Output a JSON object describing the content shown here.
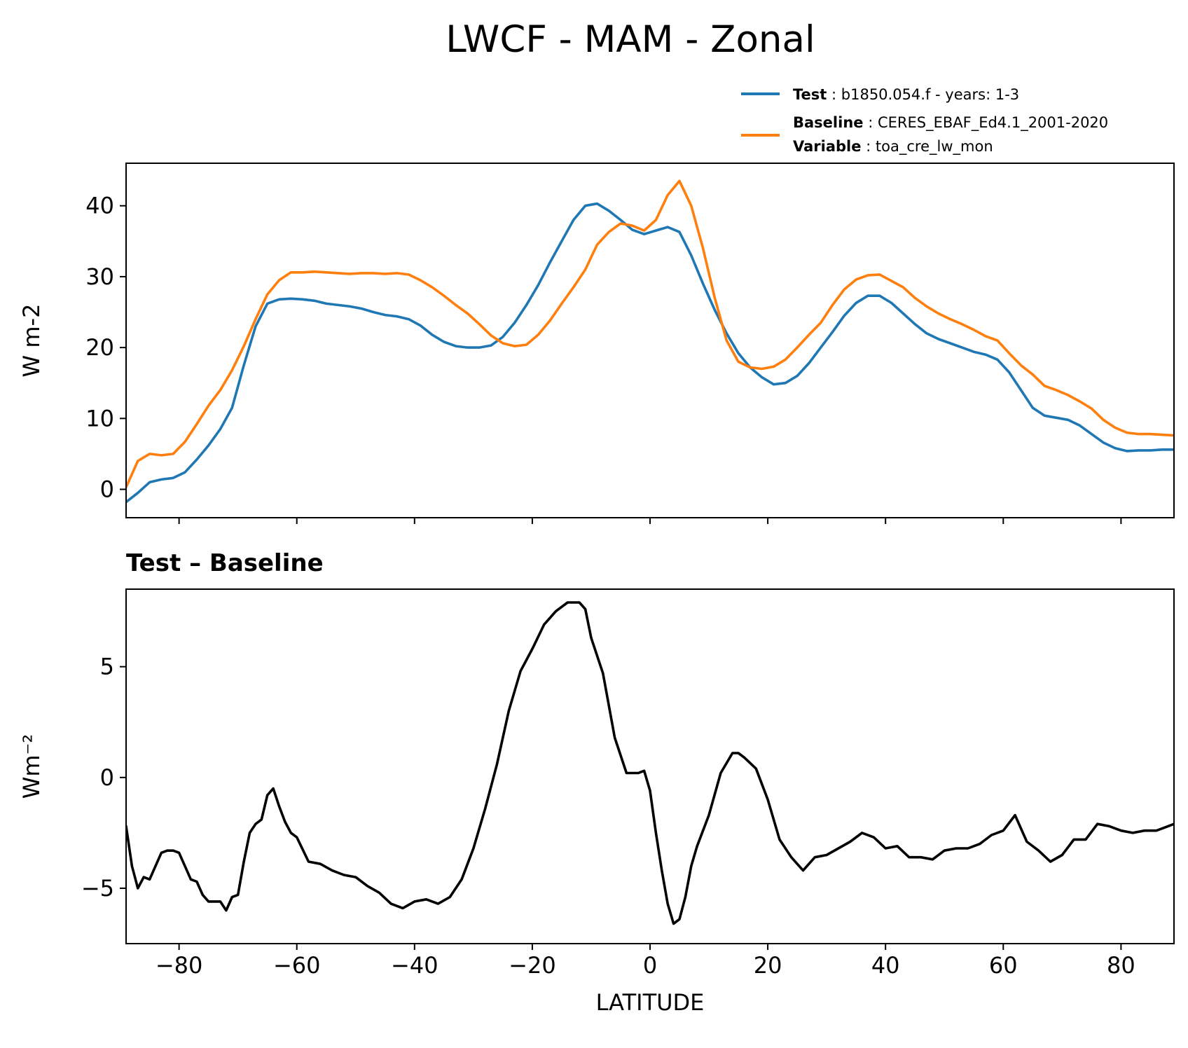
{
  "title": "LWCF - MAM - Zonal",
  "legend": {
    "test": {
      "key": "Test",
      "value": "b1850.054.f - years: 1-3"
    },
    "baseline": {
      "key": "Baseline",
      "value": "CERES_EBAF_Ed4.1_2001-2020"
    },
    "variable": {
      "key": "Variable",
      "value": "toa_cre_lw_mon"
    }
  },
  "colors": {
    "test": "#1f77b4",
    "baseline": "#ff7f0e",
    "diff": "#000000"
  },
  "chart_data": [
    {
      "type": "line",
      "xlim": [
        -89,
        89
      ],
      "ylim": [
        -4,
        46
      ],
      "ylabel": "W m-2",
      "xticks": [
        -80,
        -60,
        -40,
        -20,
        0,
        20,
        40,
        60,
        80
      ],
      "show_xticklabels": false,
      "yticks": [
        0,
        10,
        20,
        30,
        40
      ],
      "grid": false,
      "legend_position": "top-right, above axes",
      "series": [
        {
          "name": "Test",
          "x": [
            -89,
            -87,
            -85,
            -83,
            -81,
            -79,
            -77,
            -75,
            -73,
            -71,
            -69,
            -67,
            -65,
            -63,
            -61,
            -59,
            -57,
            -55,
            -53,
            -51,
            -49,
            -47,
            -45,
            -43,
            -41,
            -39,
            -37,
            -35,
            -33,
            -31,
            -29,
            -27,
            -25,
            -23,
            -21,
            -19,
            -17,
            -15,
            -13,
            -11,
            -9,
            -7,
            -5,
            -3,
            -1,
            1,
            3,
            5,
            7,
            9,
            11,
            13,
            15,
            17,
            19,
            21,
            23,
            25,
            27,
            29,
            31,
            33,
            35,
            37,
            39,
            41,
            43,
            45,
            47,
            49,
            51,
            53,
            55,
            57,
            59,
            61,
            63,
            65,
            67,
            69,
            71,
            73,
            75,
            77,
            79,
            81,
            83,
            85,
            87,
            89
          ],
          "y": [
            -1.8,
            -0.5,
            1.0,
            1.4,
            1.6,
            2.4,
            4.2,
            6.2,
            8.5,
            11.5,
            17.5,
            23.0,
            26.2,
            26.8,
            26.9,
            26.8,
            26.6,
            26.2,
            26.0,
            25.8,
            25.5,
            25.0,
            24.6,
            24.4,
            24.0,
            23.1,
            21.8,
            20.8,
            20.2,
            20.0,
            20.0,
            20.3,
            21.5,
            23.5,
            26.0,
            28.8,
            32.0,
            35.0,
            38.0,
            40.0,
            40.3,
            39.3,
            38.0,
            36.6,
            36.0,
            36.5,
            37.0,
            36.3,
            33.0,
            29.0,
            25.3,
            22.0,
            19.2,
            17.2,
            15.8,
            14.8,
            15.0,
            16.0,
            17.8,
            20.0,
            22.2,
            24.5,
            26.3,
            27.3,
            27.3,
            26.3,
            24.8,
            23.3,
            22.0,
            21.2,
            20.6,
            20.0,
            19.4,
            19.0,
            18.3,
            16.5,
            14.0,
            11.5,
            10.4,
            10.1,
            9.8,
            9.0,
            7.8,
            6.6,
            5.8,
            5.4,
            5.5,
            5.5,
            5.6,
            5.6
          ]
        },
        {
          "name": "Baseline",
          "x": [
            -89,
            -87,
            -85,
            -83,
            -81,
            -79,
            -77,
            -75,
            -73,
            -71,
            -69,
            -67,
            -65,
            -63,
            -61,
            -59,
            -57,
            -55,
            -53,
            -51,
            -49,
            -47,
            -45,
            -43,
            -41,
            -39,
            -37,
            -35,
            -33,
            -31,
            -29,
            -27,
            -25,
            -23,
            -21,
            -19,
            -17,
            -15,
            -13,
            -11,
            -9,
            -7,
            -5,
            -3,
            -1,
            1,
            3,
            5,
            7,
            9,
            11,
            13,
            15,
            17,
            19,
            21,
            23,
            25,
            27,
            29,
            31,
            33,
            35,
            37,
            39,
            41,
            43,
            45,
            47,
            49,
            51,
            53,
            55,
            57,
            59,
            61,
            63,
            65,
            67,
            69,
            71,
            73,
            75,
            77,
            79,
            81,
            83,
            85,
            87,
            89
          ],
          "y": [
            0.3,
            4.0,
            5.0,
            4.8,
            5.0,
            6.7,
            9.2,
            11.8,
            14.0,
            16.8,
            20.2,
            24.0,
            27.5,
            29.5,
            30.6,
            30.6,
            30.7,
            30.6,
            30.5,
            30.4,
            30.5,
            30.5,
            30.4,
            30.5,
            30.3,
            29.5,
            28.5,
            27.3,
            26.0,
            24.8,
            23.3,
            21.7,
            20.6,
            20.2,
            20.4,
            21.8,
            23.8,
            26.2,
            28.5,
            31.0,
            34.5,
            36.3,
            37.5,
            37.2,
            36.5,
            38.0,
            41.5,
            43.5,
            40.0,
            34.0,
            27.0,
            21.0,
            18.0,
            17.2,
            17.0,
            17.3,
            18.3,
            20.0,
            21.8,
            23.5,
            26.0,
            28.2,
            29.6,
            30.2,
            30.3,
            29.4,
            28.5,
            27.0,
            25.8,
            24.8,
            24.0,
            23.3,
            22.5,
            21.6,
            21.0,
            19.2,
            17.5,
            16.2,
            14.6,
            14.0,
            13.3,
            12.4,
            11.4,
            9.8,
            8.7,
            8.0,
            7.8,
            7.8,
            7.7,
            7.6
          ]
        }
      ]
    },
    {
      "type": "line",
      "title": "Test – Baseline",
      "xlim": [
        -89,
        89
      ],
      "ylim": [
        -7.5,
        8.5
      ],
      "xlabel": "LATITUDE",
      "ylabel": "Wm⁻²",
      "xticks": [
        -80,
        -60,
        -40,
        -20,
        0,
        20,
        40,
        60,
        80
      ],
      "xticklabels": [
        "−80",
        "−60",
        "−40",
        "−20",
        "0",
        "20",
        "40",
        "60",
        "80"
      ],
      "yticks": [
        -5,
        0,
        5
      ],
      "yticklabels": [
        "−5",
        "0",
        "5"
      ],
      "grid": false,
      "series": [
        {
          "x": [
            -89,
            -88,
            -87,
            -86,
            -85,
            -84,
            -83,
            -82,
            -81,
            -80,
            -79,
            -78,
            -77,
            -76,
            -75,
            -74,
            -73,
            -72,
            -71,
            -70,
            -69,
            -68,
            -67,
            -66,
            -65,
            -64,
            -63,
            -62,
            -61,
            -60,
            -58,
            -56,
            -54,
            -52,
            -50,
            -48,
            -46,
            -44,
            -42,
            -40,
            -38,
            -36,
            -34,
            -32,
            -30,
            -28,
            -26,
            -24,
            -22,
            -20,
            -18,
            -16,
            -14,
            -12,
            -11,
            -10,
            -8,
            -6,
            -4,
            -2,
            -1,
            0,
            1,
            2,
            3,
            4,
            5,
            6,
            7,
            8,
            10,
            12,
            14,
            15,
            16,
            18,
            20,
            22,
            24,
            26,
            28,
            30,
            32,
            34,
            36,
            38,
            40,
            42,
            44,
            46,
            48,
            50,
            52,
            54,
            56,
            58,
            60,
            62,
            64,
            66,
            68,
            70,
            72,
            74,
            76,
            78,
            80,
            82,
            84,
            86,
            88,
            89
          ],
          "y": [
            -2.2,
            -4.0,
            -5.0,
            -4.5,
            -4.6,
            -4.0,
            -3.4,
            -3.3,
            -3.3,
            -3.4,
            -4.0,
            -4.6,
            -4.7,
            -5.3,
            -5.6,
            -5.6,
            -5.6,
            -6.0,
            -5.4,
            -5.3,
            -3.8,
            -2.5,
            -2.1,
            -1.9,
            -0.8,
            -0.5,
            -1.3,
            -2.0,
            -2.5,
            -2.7,
            -3.8,
            -3.9,
            -4.2,
            -4.4,
            -4.5,
            -4.9,
            -5.2,
            -5.7,
            -5.9,
            -5.6,
            -5.5,
            -5.7,
            -5.4,
            -4.6,
            -3.2,
            -1.4,
            0.6,
            3.0,
            4.8,
            5.8,
            6.9,
            7.5,
            7.9,
            7.9,
            7.6,
            6.3,
            4.7,
            1.8,
            0.2,
            0.2,
            0.3,
            -0.6,
            -2.5,
            -4.2,
            -5.7,
            -6.6,
            -6.4,
            -5.4,
            -4.0,
            -3.1,
            -1.7,
            0.2,
            1.1,
            1.1,
            0.9,
            0.4,
            -1.0,
            -2.8,
            -3.6,
            -4.2,
            -3.6,
            -3.5,
            -3.2,
            -2.9,
            -2.5,
            -2.7,
            -3.2,
            -3.1,
            -3.6,
            -3.6,
            -3.7,
            -3.3,
            -3.2,
            -3.2,
            -3.0,
            -2.6,
            -2.4,
            -1.7,
            -2.9,
            -3.3,
            -3.8,
            -3.5,
            -2.8,
            -2.8,
            -2.1,
            -2.2,
            -2.4,
            -2.5,
            -2.4,
            -2.4,
            -2.2,
            -2.1
          ]
        }
      ]
    }
  ]
}
